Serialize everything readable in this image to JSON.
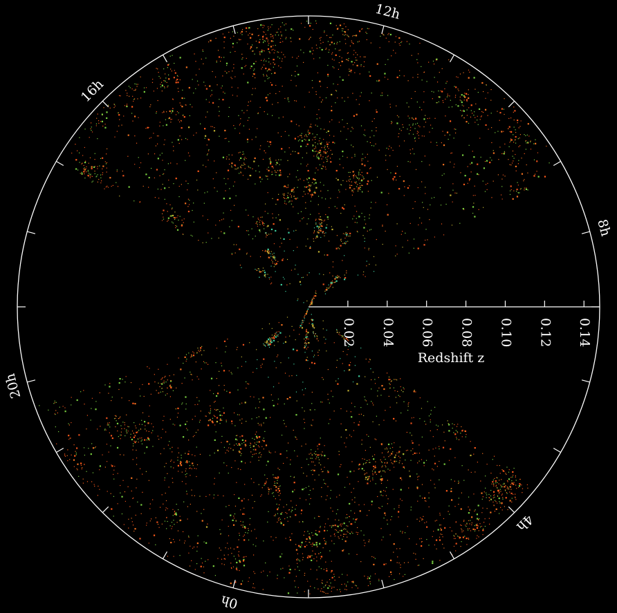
{
  "chart_data": {
    "type": "polar",
    "xlabel": "Redshift z",
    "rlim": [
      0,
      0.148
    ],
    "rticks": [
      0.02,
      0.04,
      0.06,
      0.08,
      {
        "value": 0.1,
        "label": "0.10"
      },
      0.12,
      0.14
    ],
    "angle_ticks": [
      {
        "value": 12,
        "label": "12h"
      },
      {
        "value": 8,
        "label": "8h"
      },
      {
        "value": 4,
        "label": "4h"
      },
      {
        "value": 0,
        "label": "0h"
      },
      {
        "value": 20,
        "label": "20h"
      },
      {
        "value": 16,
        "label": "16h"
      }
    ]
  }
}
